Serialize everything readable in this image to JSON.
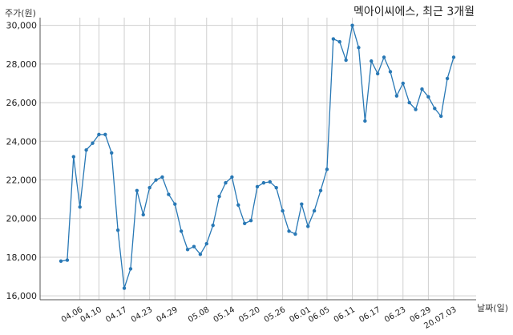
{
  "chart_data": {
    "type": "line",
    "title": "멕아이씨에스, 최근 3개월",
    "ylabel": "주가(원)",
    "xlabel": "날짜(일)",
    "ylim": [
      15800,
      30400
    ],
    "yticks": [
      16000,
      18000,
      20000,
      22000,
      24000,
      26000,
      28000,
      30000
    ],
    "ytick_labels": [
      "16,000",
      "18,000",
      "20,000",
      "22,000",
      "24,000",
      "26,000",
      "28,000",
      "30,000"
    ],
    "xtick_labels": [
      "04.06",
      "04.10",
      "04.17",
      "04.23",
      "04.29",
      "05.08",
      "05.14",
      "05.20",
      "05.26",
      "06.01",
      "06.05",
      "06.11",
      "06.17",
      "06.23",
      "06.29",
      "20.07.03"
    ],
    "xtick_index": [
      3,
      6,
      10,
      14,
      18,
      23,
      27,
      31,
      35,
      39,
      42,
      46,
      50,
      54,
      58,
      62
    ],
    "grid": true,
    "color": "#2878b5",
    "series": [
      {
        "values": [
          17800,
          17850,
          23200,
          20600,
          23550,
          23900,
          24350,
          24350,
          23400,
          19400,
          16400,
          17400,
          21450,
          20200,
          21600,
          22000,
          22150,
          21250,
          20750,
          19350,
          18400,
          18550,
          18150,
          18700,
          19650,
          21150,
          21850,
          22150,
          20700,
          19750,
          19900,
          21650,
          21850,
          21900,
          21600,
          20400,
          19350,
          19200,
          20750,
          19600,
          20400,
          21450,
          22550,
          29300,
          29150,
          28200,
          30000,
          28850,
          25050,
          28150,
          27500,
          28350,
          27600,
          26350,
          27000,
          26000,
          25650,
          26700,
          26300,
          25700,
          25300,
          27250,
          28350
        ]
      }
    ]
  }
}
